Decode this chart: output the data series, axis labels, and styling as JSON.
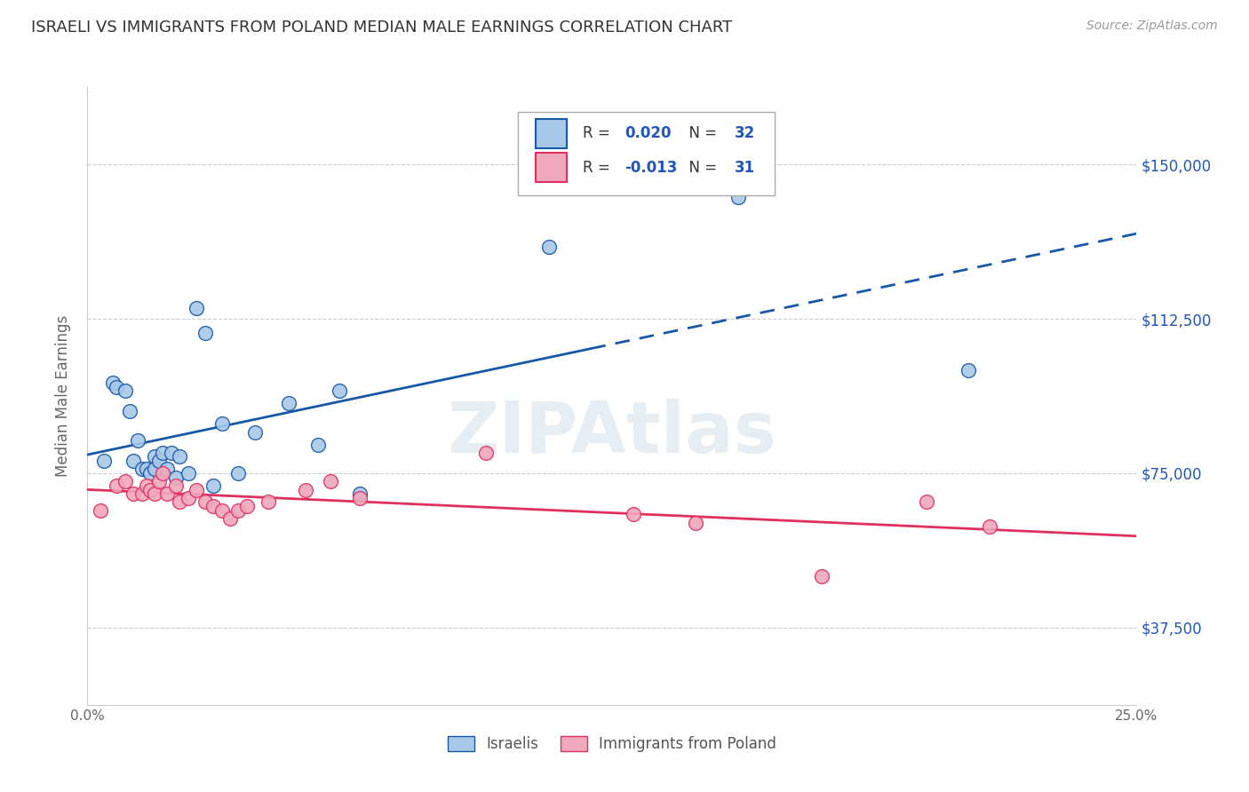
{
  "title": "ISRAELI VS IMMIGRANTS FROM POLAND MEDIAN MALE EARNINGS CORRELATION CHART",
  "source": "Source: ZipAtlas.com",
  "ylabel": "Median Male Earnings",
  "xlim": [
    0.0,
    0.25
  ],
  "ylim": [
    18750,
    168750
  ],
  "yticks": [
    37500,
    75000,
    112500,
    150000
  ],
  "ytick_labels": [
    "$37,500",
    "$75,000",
    "$112,500",
    "$150,000"
  ],
  "xticks": [
    0.0,
    0.05,
    0.1,
    0.15,
    0.2,
    0.25
  ],
  "xtick_labels": [
    "0.0%",
    "",
    "",
    "",
    "",
    "25.0%"
  ],
  "R_israeli": 0.02,
  "N_israeli": 32,
  "R_poland": -0.013,
  "N_poland": 31,
  "color_israeli": "#a8c8e8",
  "color_poland": "#f0a8bc",
  "color_line_israeli": "#1858a8",
  "color_line_poland": "#e03060",
  "israeli_x": [
    0.004,
    0.006,
    0.007,
    0.009,
    0.01,
    0.011,
    0.012,
    0.013,
    0.014,
    0.015,
    0.016,
    0.016,
    0.017,
    0.018,
    0.019,
    0.02,
    0.021,
    0.022,
    0.024,
    0.026,
    0.028,
    0.03,
    0.032,
    0.036,
    0.04,
    0.048,
    0.055,
    0.06,
    0.065,
    0.11,
    0.155,
    0.21
  ],
  "israeli_y": [
    78000,
    97000,
    96000,
    95000,
    90000,
    78000,
    83000,
    76000,
    76000,
    75000,
    79000,
    76000,
    78000,
    80000,
    76000,
    80000,
    74000,
    79000,
    75000,
    115000,
    109000,
    72000,
    87000,
    75000,
    85000,
    92000,
    82000,
    95000,
    70000,
    130000,
    142000,
    100000
  ],
  "poland_x": [
    0.003,
    0.007,
    0.009,
    0.011,
    0.013,
    0.014,
    0.015,
    0.016,
    0.017,
    0.018,
    0.019,
    0.021,
    0.022,
    0.024,
    0.026,
    0.028,
    0.03,
    0.032,
    0.034,
    0.036,
    0.038,
    0.043,
    0.052,
    0.058,
    0.065,
    0.095,
    0.13,
    0.145,
    0.175,
    0.2,
    0.215
  ],
  "poland_y": [
    66000,
    72000,
    73000,
    70000,
    70000,
    72000,
    71000,
    70000,
    73000,
    75000,
    70000,
    72000,
    68000,
    69000,
    71000,
    68000,
    67000,
    66000,
    64000,
    66000,
    67000,
    68000,
    71000,
    73000,
    69000,
    80000,
    65000,
    63000,
    50000,
    68000,
    62000
  ],
  "background_color": "#ffffff",
  "grid_color": "#cccccc",
  "title_color": "#333333",
  "axis_label_color": "#666666",
  "tick_color": "#666666",
  "right_label_color": "#2255bb"
}
